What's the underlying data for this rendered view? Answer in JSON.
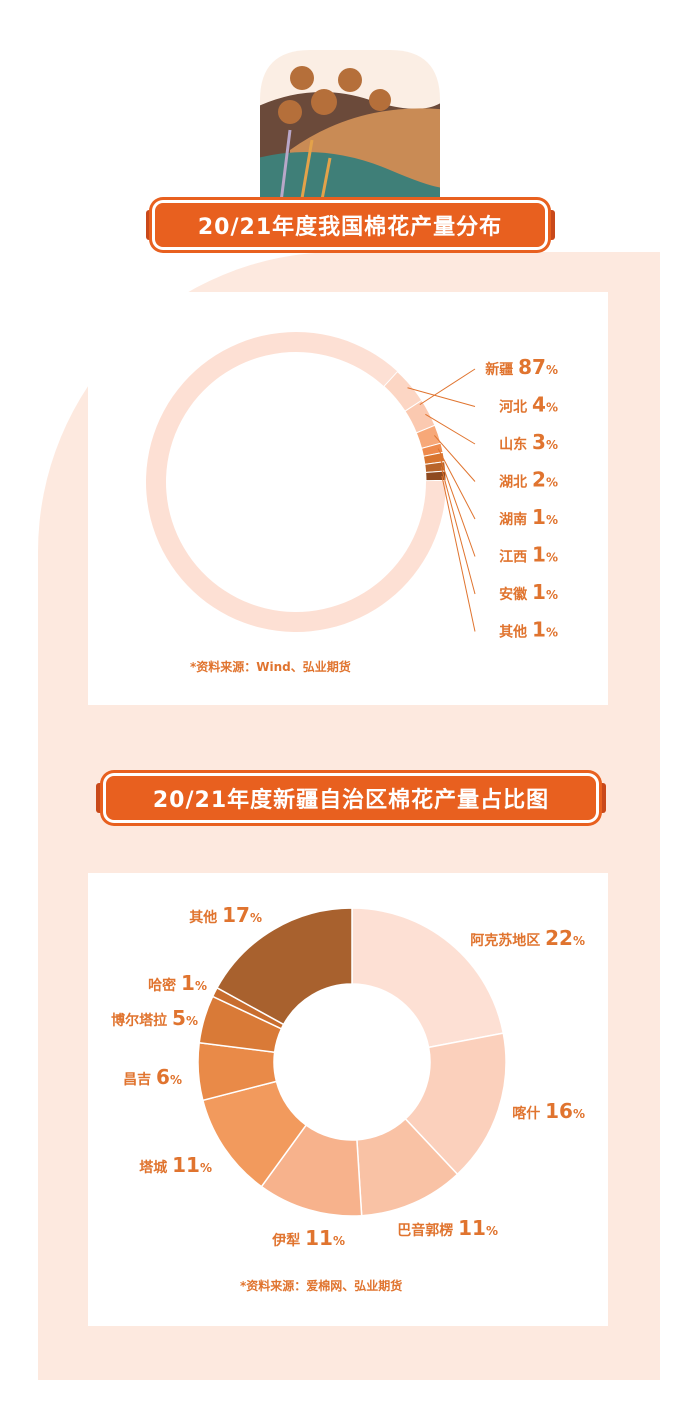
{
  "colors": {
    "accent": "#e8601f",
    "label": "#e0742f",
    "background": "#fde9df"
  },
  "chart_data": [
    {
      "type": "pie",
      "style": "donut",
      "title": "20/21年度我国棉花产量分布",
      "categories": [
        "新疆",
        "河北",
        "山东",
        "湖北",
        "湖南",
        "江西",
        "安徽",
        "其他"
      ],
      "values": [
        87,
        4,
        3,
        2,
        1,
        1,
        1,
        1
      ],
      "unit": "%",
      "colors": [
        "#fde0d4",
        "#fcd6c4",
        "#fbc9b0",
        "#f7a878",
        "#ee8a4c",
        "#d8752f",
        "#b8642a",
        "#8e4a20"
      ],
      "source": "*资料来源：Wind、弘业期货"
    },
    {
      "type": "pie",
      "style": "donut",
      "title": "20/21年度新疆自治区棉花产量占比图",
      "categories": [
        "阿克苏地区",
        "喀什",
        "巴音郭楞",
        "伊犁",
        "塔城",
        "昌吉",
        "博尔塔拉",
        "哈密",
        "其他"
      ],
      "values": [
        22,
        16,
        11,
        11,
        11,
        6,
        5,
        1,
        17
      ],
      "unit": "%",
      "colors": [
        "#fde0d4",
        "#fbd0bc",
        "#f9c2a5",
        "#f7b28c",
        "#f29a5d",
        "#e98a48",
        "#d97a37",
        "#c86d2e",
        "#a8612e"
      ],
      "source": "*资料来源：爱棉网、弘业期货"
    }
  ]
}
